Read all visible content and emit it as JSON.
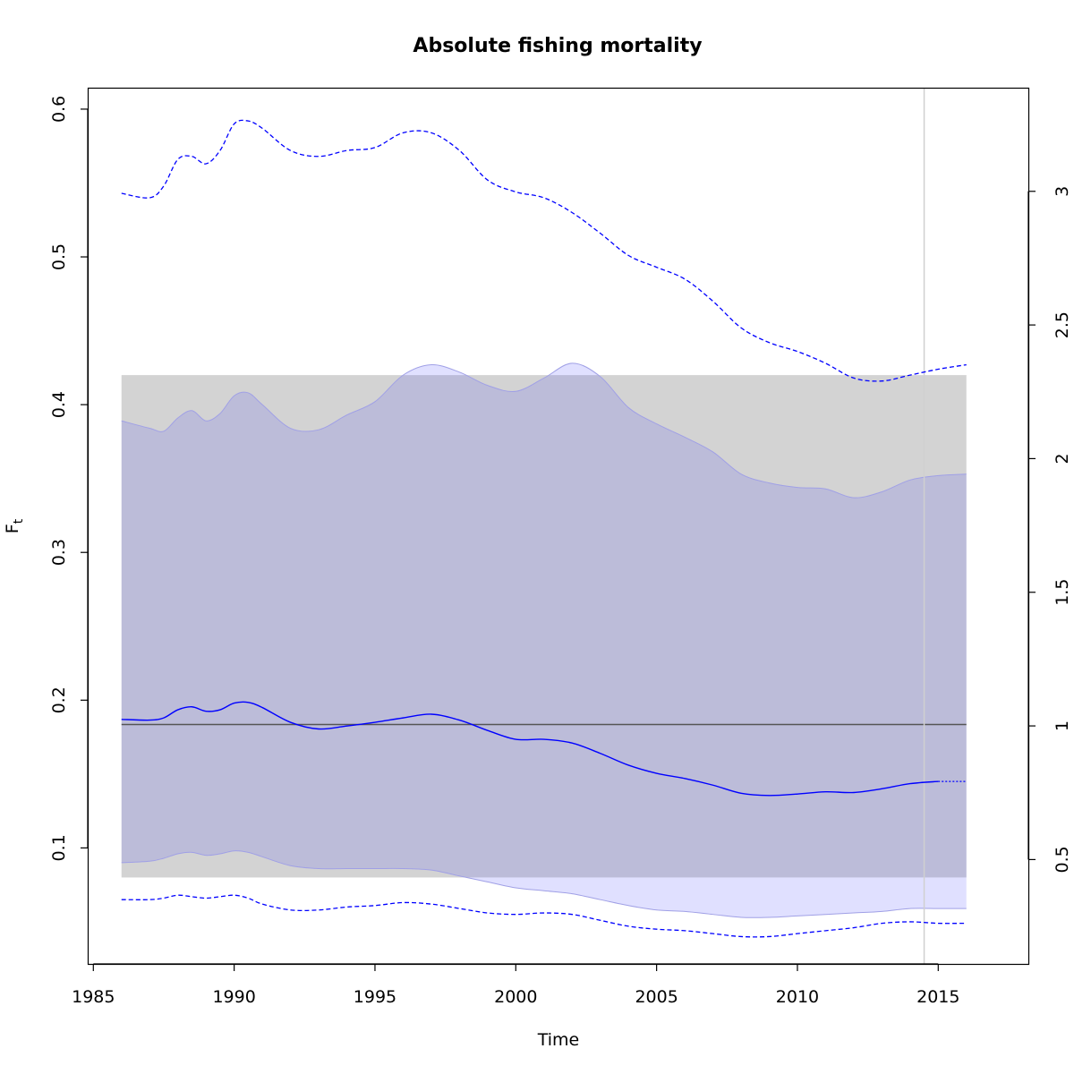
{
  "chart_data": {
    "type": "line",
    "title": "Absolute fishing mortality",
    "xlabel": "Time",
    "ylabel": "F",
    "ylabel_sub": "t",
    "xlim": [
      1984.8,
      2018.2
    ],
    "ylim": [
      0.0215,
      0.6145
    ],
    "y2lim": [
      0.1096,
      3.3876
    ],
    "grid": false,
    "legend": "none",
    "x_ticks": [
      1985,
      1990,
      1995,
      2000,
      2005,
      2010,
      2015
    ],
    "y_ticks": [
      0.1,
      0.2,
      0.3,
      0.4,
      0.5,
      0.6
    ],
    "y2_ticks": [
      0.5,
      1,
      1.5,
      2,
      2.5,
      3
    ],
    "colors": {
      "line": "#0000ff",
      "ci_fill": "#e0e0ff",
      "ci_edge": "#a0a0e6",
      "overlap_fill": "#bcbcd9",
      "ref_band": "#d3d3d3",
      "ref_line": "#555555",
      "vline": "#d0d0d0"
    },
    "reference": {
      "band": [
        0.08,
        0.42
      ],
      "level": 0.1835,
      "x_range": [
        1986,
        2016
      ]
    },
    "vline_x": 2014.5,
    "series": [
      {
        "role": "estimate",
        "x": [
          1986,
          1987,
          1987.5,
          1988,
          1988.5,
          1989,
          1989.5,
          1990,
          1990.5,
          1991,
          1992,
          1993,
          1994,
          1995,
          1996,
          1997,
          1998,
          1999,
          2000,
          2001,
          2002,
          2003,
          2004,
          2005,
          2006,
          2007,
          2008,
          2009,
          2010,
          2011,
          2012,
          2013,
          2014,
          2015
        ],
        "y": [
          0.187,
          0.1865,
          0.188,
          0.1935,
          0.1955,
          0.1925,
          0.1935,
          0.198,
          0.1985,
          0.195,
          0.185,
          0.1805,
          0.1825,
          0.185,
          0.188,
          0.1905,
          0.1865,
          0.1795,
          0.1735,
          0.1735,
          0.171,
          0.164,
          0.156,
          0.1505,
          0.147,
          0.1425,
          0.137,
          0.1355,
          0.1365,
          0.138,
          0.1375,
          0.14,
          0.1435,
          0.145
        ],
        "forecast_x": [
          2015,
          2016
        ],
        "forecast_y": [
          0.145,
          0.145
        ]
      },
      {
        "role": "upper",
        "x": [
          1986,
          1987,
          1987.5,
          1988,
          1988.5,
          1989,
          1989.5,
          1990,
          1990.5,
          1991,
          1992,
          1993,
          1994,
          1995,
          1996,
          1997,
          1998,
          1999,
          2000,
          2001,
          2002,
          2003,
          2004,
          2005,
          2006,
          2007,
          2008,
          2009,
          2010,
          2011,
          2012,
          2013,
          2014,
          2015,
          2016
        ],
        "y": [
          0.543,
          0.54,
          0.548,
          0.566,
          0.568,
          0.563,
          0.572,
          0.59,
          0.592,
          0.587,
          0.572,
          0.568,
          0.572,
          0.574,
          0.584,
          0.584,
          0.572,
          0.552,
          0.544,
          0.54,
          0.53,
          0.516,
          0.501,
          0.493,
          0.485,
          0.47,
          0.452,
          0.442,
          0.436,
          0.428,
          0.418,
          0.416,
          0.42,
          0.424,
          0.427
        ]
      },
      {
        "role": "lower",
        "x": [
          1986,
          1987,
          1987.5,
          1988,
          1988.5,
          1989,
          1989.5,
          1990,
          1990.5,
          1991,
          1992,
          1993,
          1994,
          1995,
          1996,
          1997,
          1998,
          1999,
          2000,
          2001,
          2002,
          2003,
          2004,
          2005,
          2006,
          2007,
          2008,
          2009,
          2010,
          2011,
          2012,
          2013,
          2014,
          2015,
          2016
        ],
        "y": [
          0.065,
          0.065,
          0.066,
          0.068,
          0.067,
          0.066,
          0.067,
          0.068,
          0.066,
          0.062,
          0.058,
          0.058,
          0.06,
          0.061,
          0.063,
          0.062,
          0.059,
          0.056,
          0.055,
          0.056,
          0.055,
          0.051,
          0.047,
          0.045,
          0.044,
          0.042,
          0.04,
          0.04,
          0.042,
          0.044,
          0.046,
          0.049,
          0.05,
          0.049,
          0.049
        ]
      },
      {
        "role": "ci-band",
        "x": [
          1986,
          1987,
          1987.5,
          1988,
          1988.5,
          1989,
          1989.5,
          1990,
          1990.5,
          1991,
          1992,
          1993,
          1994,
          1995,
          1996,
          1997,
          1998,
          1999,
          2000,
          2001,
          2002,
          2003,
          2004,
          2005,
          2006,
          2007,
          2008,
          2009,
          2010,
          2011,
          2012,
          2013,
          2014,
          2015,
          2016
        ],
        "y_upper": [
          0.389,
          0.384,
          0.382,
          0.391,
          0.396,
          0.389,
          0.394,
          0.406,
          0.408,
          0.4,
          0.384,
          0.383,
          0.393,
          0.402,
          0.42,
          0.427,
          0.422,
          0.413,
          0.409,
          0.418,
          0.428,
          0.419,
          0.398,
          0.387,
          0.378,
          0.368,
          0.353,
          0.347,
          0.344,
          0.343,
          0.337,
          0.341,
          0.349,
          0.352,
          0.353
        ],
        "y_lower": [
          0.09,
          0.091,
          0.093,
          0.096,
          0.097,
          0.095,
          0.096,
          0.098,
          0.097,
          0.094,
          0.088,
          0.086,
          0.086,
          0.086,
          0.086,
          0.085,
          0.081,
          0.077,
          0.073,
          0.071,
          0.069,
          0.065,
          0.061,
          0.058,
          0.057,
          0.055,
          0.053,
          0.053,
          0.054,
          0.055,
          0.056,
          0.057,
          0.059,
          0.059,
          0.059
        ]
      }
    ]
  }
}
